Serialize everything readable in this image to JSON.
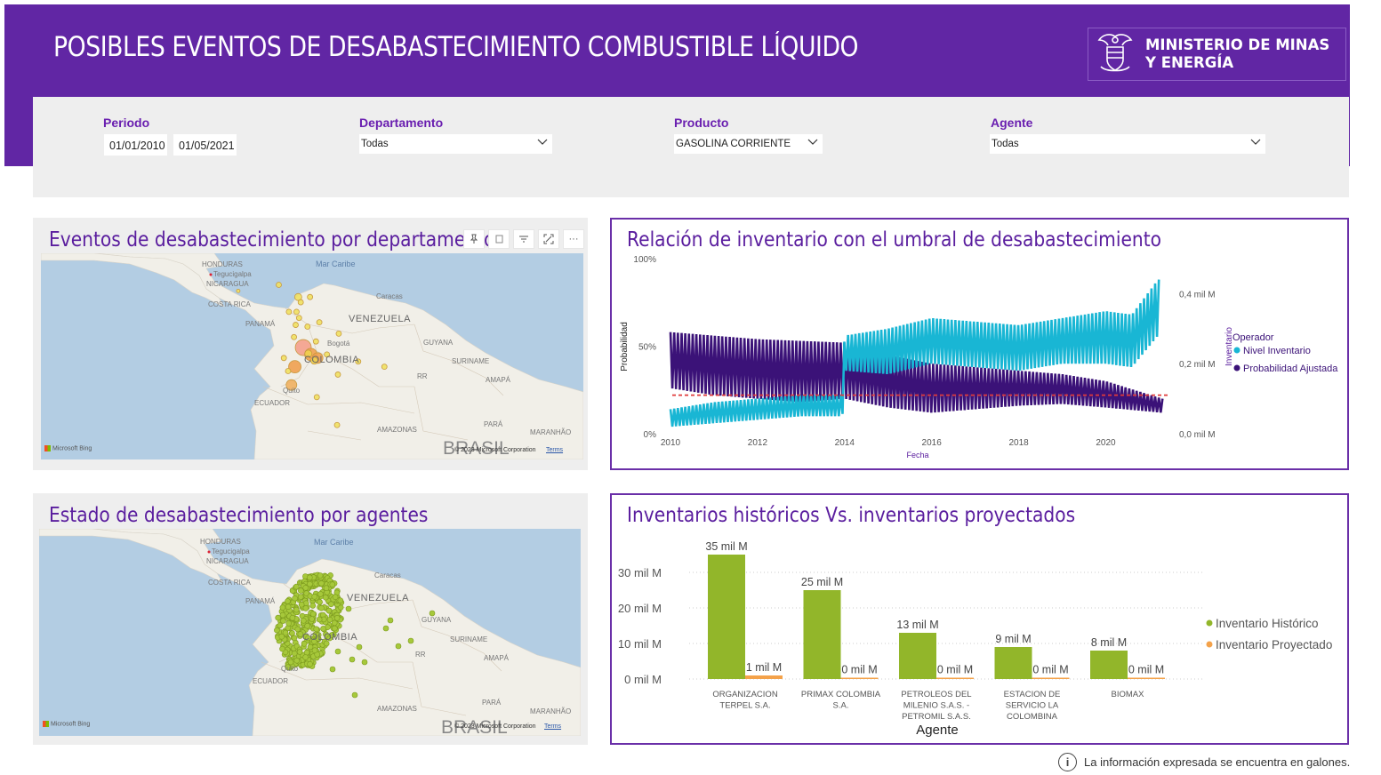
{
  "header": {
    "title": "POSIBLES EVENTOS DE DESABASTECIMIENTO COMBUSTIBLE LÍQUIDO",
    "logo_line1": "MINISTERIO DE MINAS",
    "logo_line2": "Y ENERGÍA"
  },
  "filters": {
    "periodo_label": "Periodo",
    "date_start": "01/01/2010",
    "date_end": "01/05/2021",
    "departamento_label": "Departamento",
    "departamento_value": "Todas",
    "producto_label": "Producto",
    "producto_value": "GASOLINA CORRIENTE",
    "agente_label": "Agente",
    "agente_value": "Todas"
  },
  "map1": {
    "title": "Eventos de desabastecimiento por departamento",
    "bubbles": [
      {
        "lon": -74.1,
        "lat": 4.7,
        "value": 9,
        "color": "#f4a08c"
      },
      {
        "lon": -73.2,
        "lat": 3.9,
        "value": 7,
        "color": "#f0a050"
      },
      {
        "lon": -72.4,
        "lat": 3.5,
        "value": 6,
        "color": "#f0a050"
      },
      {
        "lon": -75.1,
        "lat": 2.5,
        "value": 7,
        "color": "#f0a050"
      },
      {
        "lon": -75.5,
        "lat": 0.4,
        "value": 6,
        "color": "#f0b060"
      },
      {
        "lon": -73.5,
        "lat": 4.0,
        "value": 4,
        "color": "#f0d050"
      },
      {
        "lon": -72.8,
        "lat": 3.2,
        "value": 4,
        "color": "#f0d050"
      },
      {
        "lon": -74.7,
        "lat": 10.5,
        "value": 4,
        "color": "#f0e060"
      },
      {
        "lon": -74.4,
        "lat": 9.9,
        "value": 3,
        "color": "#f0e060"
      },
      {
        "lon": -74.9,
        "lat": 8.8,
        "value": 3,
        "color": "#f0e060"
      },
      {
        "lon": -73.3,
        "lat": 10.5,
        "value": 3,
        "color": "#f0e060"
      },
      {
        "lon": -75.0,
        "lat": 7.3,
        "value": 3,
        "color": "#f0e060"
      },
      {
        "lon": -74.6,
        "lat": 8.1,
        "value": 3,
        "color": "#f0e060"
      },
      {
        "lon": -73.6,
        "lat": 7.1,
        "value": 3,
        "color": "#f0e060"
      },
      {
        "lon": -75.2,
        "lat": 5.9,
        "value": 3,
        "color": "#f0e060"
      },
      {
        "lon": -76.4,
        "lat": 3.5,
        "value": 3,
        "color": "#f0e060"
      },
      {
        "lon": -72.2,
        "lat": 7.6,
        "value": 3,
        "color": "#f0e060"
      },
      {
        "lon": -71.3,
        "lat": 3.9,
        "value": 3,
        "color": "#f0e060"
      },
      {
        "lon": -69.9,
        "lat": 6.3,
        "value": 3,
        "color": "#f0e060"
      },
      {
        "lon": -72.6,
        "lat": 5.4,
        "value": 3,
        "color": "#f0e060"
      },
      {
        "lon": -70.0,
        "lat": 1.6,
        "value": 3,
        "color": "#f0e060"
      },
      {
        "lon": -67.6,
        "lat": 3.1,
        "value": 3,
        "color": "#f0e060"
      },
      {
        "lon": -64.5,
        "lat": 2.5,
        "value": 3,
        "color": "#f0e060"
      },
      {
        "lon": -72.5,
        "lat": -1.0,
        "value": 3,
        "color": "#f0e060"
      },
      {
        "lon": -70.1,
        "lat": -4.2,
        "value": 3,
        "color": "#f0e060"
      },
      {
        "lon": -75.9,
        "lat": 2.0,
        "value": 3,
        "color": "#f0e060"
      },
      {
        "lon": -77.0,
        "lat": 11.9,
        "value": 3,
        "color": "#f0e060"
      },
      {
        "lon": -75.8,
        "lat": 8.8,
        "value": 3,
        "color": "#f0e060"
      },
      {
        "lon": -81.8,
        "lat": 11.2,
        "value": 2,
        "color": "#f0e060"
      }
    ],
    "labels": {
      "honduras": "HONDURAS",
      "tegucigalpa": "Tegucigalpa",
      "nicaragua": "NICARAGUA",
      "costa_rica": "COSTA RICA",
      "panama": "PANAMÁ",
      "mar_caribe": "Mar Caribe",
      "caracas": "Caracas",
      "venezuela": "VENEZUELA",
      "bogota": "Bogotá",
      "colombia": "COLOMBIA",
      "guyana": "GUYANA",
      "suriname": "SURINAME",
      "rr": "RR",
      "amapa": "AMAPÁ",
      "quito": "Quito",
      "ecuador": "ECUADOR",
      "amazonas": "AMAZONAS",
      "para": "PARÁ",
      "maranhao": "MARANHÃO",
      "brasil": "BRASIL",
      "bing": "Microsoft Bing",
      "copyright": "© 2023 Microsoft Corporation",
      "terms": "Terms"
    }
  },
  "map2": {
    "title": "Estado de desabastecimiento por agentes",
    "dot_color": "#a6c83a",
    "labels": {
      "honduras": "HONDURAS",
      "tegucigalpa": "Tegucigalpa",
      "nicaragua": "NICARAGUA",
      "costa_rica": "COSTA RICA",
      "panama": "PANAMÁ",
      "mar_caribe": "Mar Caribe",
      "caracas": "Caracas",
      "venezuela": "VENEZUELA",
      "colombia": "COLOMBIA",
      "guyana": "GUYANA",
      "suriname": "SURINAME",
      "rr": "RR",
      "amapa": "AMAPÁ",
      "quito": "Quito",
      "ecuador": "ECUADOR",
      "amazonas": "AMAZONAS",
      "para": "PARÁ",
      "maranhao": "MARANHÃO",
      "brasil": "BRASIL",
      "bing": "Microsoft Bing",
      "copyright": "© 2023 Microsoft Corporation",
      "terms": "Terms"
    }
  },
  "chart_data": [
    {
      "type": "line",
      "title": "Relación de inventario con el umbral de desabastecimiento",
      "xlabel": "Fecha",
      "ylabel": "Probabilidad",
      "y2label": "Inventario",
      "x_ticks": [
        "2010",
        "2012",
        "2014",
        "2016",
        "2018",
        "2020"
      ],
      "y_ticks": [
        "0%",
        "50%",
        "100%"
      ],
      "y2_ticks": [
        "0,0 mil M",
        "0,2 mil M",
        "0,4 mil M"
      ],
      "legend_title": "Operador",
      "threshold": 0.22,
      "series": [
        {
          "name": "Nivel Inventario",
          "color": "#19b6d4",
          "axis": "right",
          "x": [
            2010.0,
            2011.0,
            2012.0,
            2013.0,
            2013.95,
            2014.0,
            2015.0,
            2016.0,
            2017.0,
            2018.0,
            2019.0,
            2020.0,
            2020.6,
            2021.2
          ],
          "low": [
            0.02,
            0.03,
            0.04,
            0.05,
            0.05,
            0.18,
            0.17,
            0.2,
            0.19,
            0.18,
            0.2,
            0.2,
            0.19,
            0.28
          ],
          "high": [
            0.07,
            0.09,
            0.1,
            0.11,
            0.11,
            0.28,
            0.3,
            0.33,
            0.32,
            0.31,
            0.33,
            0.35,
            0.34,
            0.44
          ]
        },
        {
          "name": "Probabilidad Ajustada",
          "color": "#3b1278",
          "axis": "left",
          "x": [
            2010.0,
            2011.0,
            2012.0,
            2013.0,
            2014.0,
            2015.0,
            2016.0,
            2017.0,
            2018.0,
            2019.0,
            2020.0,
            2021.3
          ],
          "low": [
            0.26,
            0.22,
            0.2,
            0.18,
            0.2,
            0.15,
            0.12,
            0.14,
            0.16,
            0.17,
            0.15,
            0.12
          ],
          "high": [
            0.58,
            0.56,
            0.54,
            0.53,
            0.52,
            0.45,
            0.4,
            0.38,
            0.36,
            0.34,
            0.3,
            0.2
          ]
        }
      ]
    },
    {
      "type": "bar",
      "title": "Inventarios históricos Vs. inventarios proyectados",
      "xlabel": "Agente",
      "ylabel": "",
      "y_ticks": [
        "0 mil M",
        "10 mil M",
        "20 mil M",
        "30 mil M"
      ],
      "categories": [
        "ORGANIZACION TERPEL S.A.",
        "PRIMAX COLOMBIA S.A.",
        "PETROLEOS DEL MILENIO S.A.S. - PETROMIL S.A.S.",
        "ESTACION DE SERVICIO LA COLOMBINA",
        "BIOMAX"
      ],
      "series": [
        {
          "name": "Inventario Histórico",
          "color": "#92b62a",
          "values": [
            35,
            25,
            13,
            9,
            8
          ],
          "labels": [
            "35 mil M",
            "25 mil M",
            "13 mil M",
            "9 mil M",
            "8 mil M"
          ]
        },
        {
          "name": "Inventario Proyectado",
          "color": "#f4a24a",
          "values": [
            1,
            0,
            0,
            0,
            0
          ],
          "labels": [
            "1 mil M",
            "0 mil M",
            "0 mil M",
            "0 mil M",
            "0 mil M"
          ]
        }
      ],
      "ylim": [
        0,
        40
      ]
    }
  ],
  "footer": {
    "note": "La información expresada se encuentra en galones."
  }
}
